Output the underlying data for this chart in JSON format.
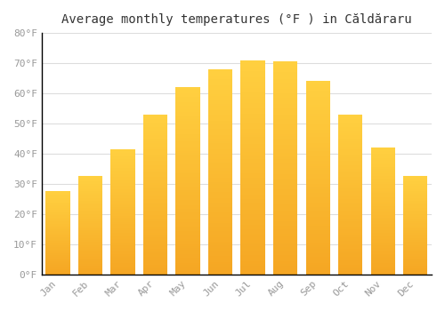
{
  "title": "Average monthly temperatures (°F ) in Căldăraru",
  "months": [
    "Jan",
    "Feb",
    "Mar",
    "Apr",
    "May",
    "Jun",
    "Jul",
    "Aug",
    "Sep",
    "Oct",
    "Nov",
    "Dec"
  ],
  "values": [
    27.5,
    32.5,
    41.5,
    53.0,
    62.0,
    68.0,
    71.0,
    70.5,
    64.0,
    53.0,
    42.0,
    32.5
  ],
  "bar_color_top": "#FFD040",
  "bar_color_bottom": "#F5A623",
  "background_color": "#FFFFFF",
  "grid_color": "#DDDDDD",
  "ylim": [
    0,
    80
  ],
  "yticks": [
    0,
    10,
    20,
    30,
    40,
    50,
    60,
    70,
    80
  ],
  "title_fontsize": 10,
  "tick_fontsize": 8,
  "tick_color": "#999999"
}
